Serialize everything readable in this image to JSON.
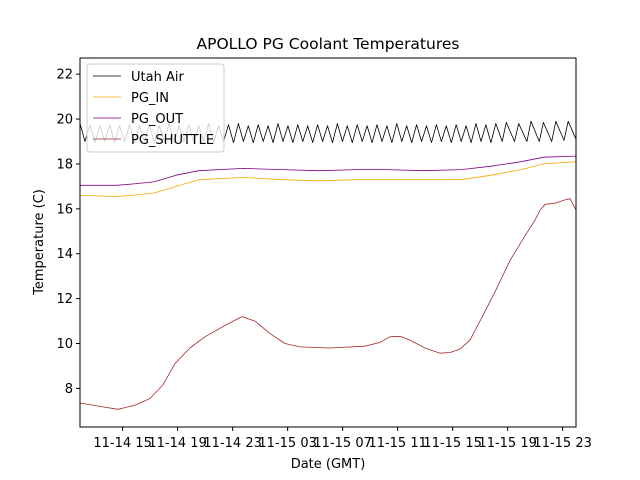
{
  "chart_data": {
    "type": "line",
    "title": "APOLLO PG Coolant Temperatures",
    "xlabel": "Date (GMT)",
    "ylabel": "Temperature (C)",
    "x_units": "hours since 11-14 00:00 GMT",
    "xlim": [
      11.9,
      47.97
    ],
    "ylim": [
      6.28,
      22.72
    ],
    "x_ticks": [
      {
        "value": 15,
        "label": "11-14 15"
      },
      {
        "value": 19,
        "label": "11-14 19"
      },
      {
        "value": 23,
        "label": "11-14 23"
      },
      {
        "value": 27,
        "label": "11-15 03"
      },
      {
        "value": 31,
        "label": "11-15 07"
      },
      {
        "value": 35,
        "label": "11-15 11"
      },
      {
        "value": 39,
        "label": "11-15 15"
      },
      {
        "value": 43,
        "label": "11-15 19"
      },
      {
        "value": 47,
        "label": "11-15 23"
      }
    ],
    "y_ticks": [
      {
        "value": 8,
        "label": "8"
      },
      {
        "value": 10,
        "label": "10"
      },
      {
        "value": 12,
        "label": "12"
      },
      {
        "value": 14,
        "label": "14"
      },
      {
        "value": 16,
        "label": "16"
      },
      {
        "value": 18,
        "label": "18"
      },
      {
        "value": 20,
        "label": "20"
      },
      {
        "value": 22,
        "label": "22"
      }
    ],
    "grid": false,
    "legend_position": "top-left",
    "series": [
      {
        "name": "Utah Air",
        "color": "#000000",
        "x": [
          11.9,
          12.26,
          12.62,
          12.98,
          13.34,
          13.7,
          14.06,
          14.42,
          14.78,
          15.14,
          15.5,
          15.86,
          16.22,
          16.58,
          16.94,
          17.3,
          17.66,
          18.02,
          18.38,
          18.74,
          19.1,
          19.46,
          19.82,
          20.18,
          20.54,
          20.9,
          21.26,
          21.62,
          21.98,
          22.34,
          22.7,
          23.06,
          23.42,
          23.78,
          24.14,
          24.5,
          24.86,
          25.22,
          25.58,
          25.94,
          26.3,
          26.66,
          27.02,
          27.38,
          27.74,
          28.1,
          28.46,
          28.82,
          29.18,
          29.54,
          29.9,
          30.26,
          30.62,
          30.98,
          31.34,
          31.7,
          32.06,
          32.42,
          32.78,
          33.14,
          33.5,
          33.86,
          34.22,
          34.58,
          34.94,
          35.3,
          35.66,
          36.02,
          36.38,
          36.74,
          37.1,
          37.46,
          37.82,
          38.18,
          38.54,
          38.9,
          39.26,
          39.62,
          39.98,
          40.34,
          40.7,
          41.06,
          41.42,
          41.78,
          42.14,
          42.6,
          42.9,
          43.5,
          43.8,
          44.4,
          44.7,
          45.3,
          45.6,
          46.2,
          46.5,
          47.1,
          47.4,
          47.97
        ],
        "values": [
          19.8,
          19.0,
          19.75,
          18.95,
          19.7,
          19.0,
          19.75,
          18.95,
          19.7,
          19.0,
          19.75,
          18.95,
          19.7,
          19.0,
          19.75,
          18.95,
          19.7,
          19.0,
          19.8,
          18.95,
          19.7,
          19.0,
          19.75,
          18.95,
          19.7,
          19.0,
          19.8,
          18.95,
          19.7,
          19.0,
          19.75,
          18.95,
          19.8,
          19.0,
          19.7,
          18.95,
          19.75,
          19.0,
          19.7,
          18.95,
          19.8,
          19.0,
          19.7,
          18.95,
          19.75,
          19.0,
          19.7,
          18.95,
          19.75,
          19.0,
          19.7,
          18.95,
          19.8,
          19.0,
          19.7,
          18.95,
          19.75,
          19.0,
          19.7,
          18.95,
          19.75,
          19.0,
          19.7,
          18.95,
          19.8,
          19.0,
          19.7,
          18.95,
          19.75,
          19.0,
          19.7,
          18.95,
          19.75,
          19.0,
          19.7,
          18.95,
          19.75,
          19.0,
          19.7,
          18.95,
          19.8,
          19.0,
          19.75,
          18.95,
          19.8,
          19.0,
          19.85,
          19.0,
          19.8,
          19.0,
          19.9,
          19.0,
          19.85,
          19.0,
          19.9,
          19.05,
          19.9,
          19.1
        ]
      },
      {
        "name": "PG_IN",
        "color": "#ffa500",
        "x": [
          11.9,
          14.55,
          15.63,
          17.26,
          18.89,
          20.53,
          23.8,
          26.53,
          29.26,
          31.98,
          34.16,
          36.89,
          39.62,
          41.8,
          43.98,
          45.62,
          47.97
        ],
        "values": [
          16.6,
          16.55,
          16.6,
          16.7,
          17.0,
          17.3,
          17.4,
          17.3,
          17.25,
          17.3,
          17.3,
          17.3,
          17.3,
          17.5,
          17.75,
          18.0,
          18.1
        ]
      },
      {
        "name": "PG_OUT",
        "color": "#800080",
        "x": [
          11.9,
          14.55,
          15.63,
          17.26,
          18.89,
          20.53,
          23.8,
          26.53,
          29.26,
          31.98,
          34.16,
          36.89,
          39.62,
          41.8,
          43.98,
          45.62,
          47.97
        ],
        "values": [
          17.05,
          17.05,
          17.1,
          17.2,
          17.5,
          17.7,
          17.8,
          17.75,
          17.7,
          17.75,
          17.75,
          17.7,
          17.75,
          17.9,
          18.1,
          18.3,
          18.35
        ]
      },
      {
        "name": "PG_SHUTTLE",
        "color": "#a52a2a",
        "x": [
          11.9,
          13.35,
          14.66,
          15.89,
          16.99,
          17.93,
          18.8,
          19.89,
          20.98,
          22.44,
          23.68,
          24.62,
          25.71,
          26.8,
          27.9,
          30.08,
          32.62,
          33.72,
          34.44,
          35.17,
          35.9,
          36.99,
          38.08,
          38.81,
          39.54,
          40.26,
          40.99,
          42.08,
          43.17,
          44.26,
          44.99,
          45.36,
          45.72,
          46.45,
          47.17,
          47.54,
          47.97
        ],
        "values": [
          7.35,
          7.2,
          7.07,
          7.25,
          7.55,
          8.15,
          9.1,
          9.8,
          10.3,
          10.8,
          11.2,
          11.0,
          10.45,
          10.0,
          9.85,
          9.8,
          9.88,
          10.05,
          10.3,
          10.32,
          10.15,
          9.8,
          9.57,
          9.6,
          9.75,
          10.15,
          11.0,
          12.3,
          13.7,
          14.8,
          15.5,
          15.95,
          16.2,
          16.25,
          16.4,
          16.45,
          15.95
        ]
      }
    ]
  }
}
